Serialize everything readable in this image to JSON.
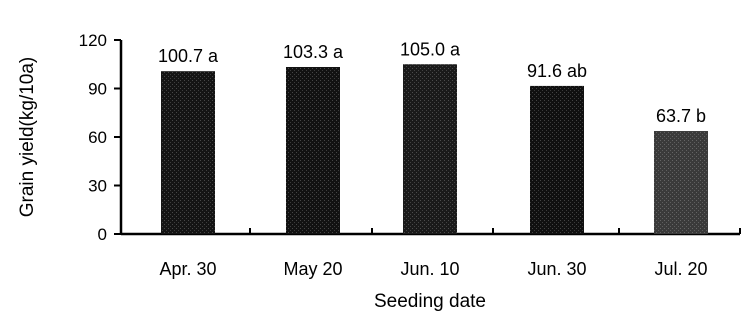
{
  "chart_data": {
    "type": "bar",
    "title": "",
    "xlabel": "Seeding date",
    "ylabel": "Grain yield(kg/10a)",
    "categories": [
      "Apr. 30",
      "May 20",
      "Jun. 10",
      "Jun. 30",
      "Jul. 20"
    ],
    "values": [
      100.7,
      103.3,
      105.0,
      91.6,
      63.7
    ],
    "data_labels": [
      "100.7 a",
      "103.3 a",
      "105.0 a",
      "91.6 ab",
      "63.7 b"
    ],
    "ylim": [
      0,
      120
    ],
    "yticks": [
      "0",
      "30",
      "60",
      "90",
      "120"
    ],
    "grid": false,
    "legend": "none",
    "colors": {
      "bar_fills": [
        "#141414",
        "#121212",
        "#1a1a1a",
        "#101010",
        "#3a3a3a"
      ],
      "axis": "#000000"
    }
  }
}
